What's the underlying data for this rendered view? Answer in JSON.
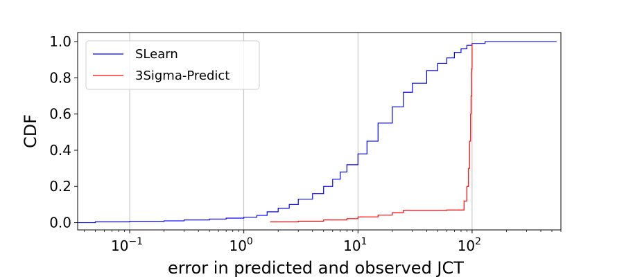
{
  "chart_data": {
    "type": "line",
    "xlabel": "error in predicted and observed JCT",
    "ylabel": "CDF",
    "xscale": "log",
    "xlim": [
      0.035,
      600
    ],
    "ylim": [
      -0.04,
      1.05
    ],
    "x_ticks": [
      {
        "value": 0.1,
        "base": "10",
        "exp": "−1"
      },
      {
        "value": 1,
        "base": "10",
        "exp": "0"
      },
      {
        "value": 10,
        "base": "10",
        "exp": "1"
      },
      {
        "value": 100,
        "base": "10",
        "exp": "2"
      }
    ],
    "y_ticks": [
      {
        "value": 0.0,
        "label": "0.0"
      },
      {
        "value": 0.2,
        "label": "0.2"
      },
      {
        "value": 0.4,
        "label": "0.4"
      },
      {
        "value": 0.6,
        "label": "0.6"
      },
      {
        "value": 0.8,
        "label": "0.8"
      },
      {
        "value": 1.0,
        "label": "1.0"
      }
    ],
    "grid": "vertical major x",
    "legend_position": "upper-left",
    "series": [
      {
        "name": "SLearn",
        "color": "#0000ff",
        "x": [
          0.035,
          0.05,
          0.1,
          0.2,
          0.3,
          0.5,
          0.7,
          1.0,
          1.3,
          1.6,
          2.0,
          2.5,
          3.0,
          4.0,
          5.0,
          6.0,
          7.0,
          8.0,
          10.0,
          12.0,
          15.0,
          20.0,
          25.0,
          30.0,
          40.0,
          50.0,
          60.0,
          70.0,
          80.0,
          90.0,
          100.0,
          130.0,
          200.0,
          300.0,
          550.0
        ],
        "y": [
          0.0,
          0.005,
          0.007,
          0.01,
          0.015,
          0.02,
          0.025,
          0.03,
          0.04,
          0.06,
          0.08,
          0.1,
          0.13,
          0.16,
          0.2,
          0.24,
          0.28,
          0.32,
          0.38,
          0.45,
          0.55,
          0.64,
          0.72,
          0.77,
          0.84,
          0.88,
          0.91,
          0.94,
          0.96,
          0.98,
          0.99,
          1.0,
          1.0,
          1.0,
          1.0
        ]
      },
      {
        "name": "3Sigma-Predict",
        "color": "#ff0000",
        "x": [
          1.7,
          3.0,
          5.0,
          8.0,
          10.0,
          15.0,
          20.0,
          25.0,
          40.0,
          60.0,
          80.0,
          85.0,
          90.0,
          93.0,
          95.0,
          97.0,
          98.0,
          99.0,
          100.0
        ],
        "y": [
          0.005,
          0.008,
          0.015,
          0.022,
          0.032,
          0.042,
          0.055,
          0.068,
          0.068,
          0.07,
          0.07,
          0.12,
          0.2,
          0.3,
          0.45,
          0.6,
          0.7,
          0.85,
          0.99
        ]
      }
    ]
  }
}
